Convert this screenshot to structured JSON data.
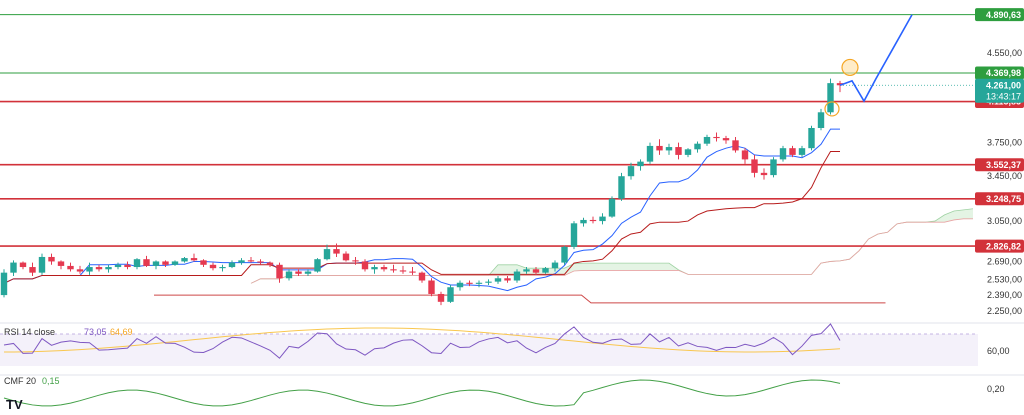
{
  "chart_data": {
    "type": "candlestick",
    "y_axis_ticks": [
      "4.550,00",
      "3.750,00",
      "3.450,00",
      "3.050,00",
      "2.690,00",
      "2.530,00",
      "2.390,00",
      "2.250,00"
    ],
    "ylim": [
      2150,
      4950
    ],
    "levels": [
      {
        "label": "4.890,63",
        "value": 4890.63,
        "color": "#2e9e3f"
      },
      {
        "label": "4.369,98",
        "value": 4369.98,
        "color": "#2e9e3f"
      },
      {
        "label": "4.115,85",
        "value": 4115.85,
        "color": "#d2323a"
      },
      {
        "label": "3.552,37",
        "value": 3552.37,
        "color": "#d2323a"
      },
      {
        "label": "3.248,75",
        "value": 3248.75,
        "color": "#d2323a"
      },
      {
        "label": "2.826,82",
        "value": 2826.82,
        "color": "#d2323a"
      }
    ],
    "current_price": {
      "label": "4.261,00",
      "countdown": "13:43:17",
      "value": 4261
    },
    "candles": [
      [
        2390,
        2620,
        2370,
        2590
      ],
      [
        2590,
        2700,
        2560,
        2680
      ],
      [
        2680,
        2690,
        2620,
        2640
      ],
      [
        2640,
        2680,
        2560,
        2590
      ],
      [
        2590,
        2760,
        2570,
        2730
      ],
      [
        2730,
        2760,
        2660,
        2690
      ],
      [
        2690,
        2700,
        2620,
        2650
      ],
      [
        2650,
        2680,
        2600,
        2620
      ],
      [
        2620,
        2650,
        2580,
        2600
      ],
      [
        2600,
        2680,
        2570,
        2640
      ],
      [
        2640,
        2660,
        2600,
        2620
      ],
      [
        2620,
        2660,
        2590,
        2640
      ],
      [
        2640,
        2680,
        2620,
        2660
      ],
      [
        2660,
        2690,
        2620,
        2640
      ],
      [
        2640,
        2720,
        2620,
        2710
      ],
      [
        2710,
        2740,
        2640,
        2650
      ],
      [
        2650,
        2700,
        2620,
        2690
      ],
      [
        2690,
        2700,
        2640,
        2660
      ],
      [
        2660,
        2700,
        2650,
        2690
      ],
      [
        2690,
        2730,
        2680,
        2720
      ],
      [
        2720,
        2760,
        2690,
        2700
      ],
      [
        2700,
        2710,
        2640,
        2660
      ],
      [
        2660,
        2680,
        2610,
        2630
      ],
      [
        2630,
        2660,
        2600,
        2640
      ],
      [
        2640,
        2700,
        2630,
        2680
      ],
      [
        2680,
        2720,
        2660,
        2700
      ],
      [
        2700,
        2730,
        2680,
        2690
      ],
      [
        2690,
        2710,
        2660,
        2680
      ],
      [
        2680,
        2690,
        2640,
        2660
      ],
      [
        2660,
        2680,
        2500,
        2540
      ],
      [
        2540,
        2620,
        2520,
        2600
      ],
      [
        2600,
        2620,
        2560,
        2580
      ],
      [
        2580,
        2620,
        2560,
        2600
      ],
      [
        2600,
        2720,
        2590,
        2710
      ],
      [
        2710,
        2840,
        2700,
        2800
      ],
      [
        2800,
        2850,
        2730,
        2760
      ],
      [
        2760,
        2780,
        2690,
        2700
      ],
      [
        2700,
        2730,
        2660,
        2690
      ],
      [
        2690,
        2710,
        2600,
        2620
      ],
      [
        2620,
        2660,
        2580,
        2640
      ],
      [
        2640,
        2660,
        2600,
        2620
      ],
      [
        2620,
        2660,
        2590,
        2610
      ],
      [
        2610,
        2650,
        2580,
        2600
      ],
      [
        2600,
        2640,
        2570,
        2590
      ],
      [
        2590,
        2600,
        2500,
        2520
      ],
      [
        2520,
        2540,
        2380,
        2400
      ],
      [
        2400,
        2420,
        2300,
        2330
      ],
      [
        2330,
        2480,
        2320,
        2460
      ],
      [
        2460,
        2520,
        2430,
        2500
      ],
      [
        2500,
        2520,
        2470,
        2490
      ],
      [
        2490,
        2520,
        2460,
        2500
      ],
      [
        2500,
        2530,
        2480,
        2510
      ],
      [
        2510,
        2560,
        2490,
        2540
      ],
      [
        2540,
        2560,
        2500,
        2520
      ],
      [
        2520,
        2620,
        2500,
        2600
      ],
      [
        2600,
        2640,
        2580,
        2620
      ],
      [
        2620,
        2640,
        2570,
        2590
      ],
      [
        2590,
        2640,
        2580,
        2630
      ],
      [
        2630,
        2700,
        2600,
        2680
      ],
      [
        2680,
        2830,
        2660,
        2820
      ],
      [
        2820,
        3050,
        2800,
        3030
      ],
      [
        3030,
        3080,
        3000,
        3060
      ],
      [
        3060,
        3090,
        3030,
        3050
      ],
      [
        3050,
        3120,
        3020,
        3090
      ],
      [
        3090,
        3270,
        3080,
        3250
      ],
      [
        3250,
        3480,
        3230,
        3450
      ],
      [
        3450,
        3570,
        3420,
        3540
      ],
      [
        3540,
        3600,
        3500,
        3580
      ],
      [
        3580,
        3750,
        3560,
        3720
      ],
      [
        3720,
        3780,
        3640,
        3680
      ],
      [
        3680,
        3740,
        3640,
        3710
      ],
      [
        3710,
        3750,
        3600,
        3640
      ],
      [
        3640,
        3700,
        3620,
        3690
      ],
      [
        3690,
        3760,
        3660,
        3740
      ],
      [
        3740,
        3820,
        3720,
        3800
      ],
      [
        3800,
        3840,
        3760,
        3790
      ],
      [
        3790,
        3810,
        3740,
        3770
      ],
      [
        3770,
        3800,
        3660,
        3680
      ],
      [
        3680,
        3700,
        3560,
        3600
      ],
      [
        3600,
        3640,
        3440,
        3480
      ],
      [
        3480,
        3520,
        3420,
        3460
      ],
      [
        3460,
        3620,
        3440,
        3600
      ],
      [
        3600,
        3720,
        3580,
        3700
      ],
      [
        3700,
        3720,
        3620,
        3640
      ],
      [
        3640,
        3720,
        3620,
        3700
      ],
      [
        3700,
        3900,
        3680,
        3880
      ],
      [
        3880,
        4050,
        3860,
        4020
      ],
      [
        4020,
        4320,
        4000,
        4280
      ],
      [
        4280,
        4300,
        4200,
        4261
      ]
    ],
    "forecast_path": [
      [
        4261,
        0
      ],
      [
        4300,
        1.5
      ],
      [
        4120,
        3
      ],
      [
        4320,
        4.5
      ],
      [
        4890,
        9
      ]
    ],
    "rsi": {
      "label": "RSI 14 close",
      "value1": "73,05",
      "value2": "64,69",
      "tick": "60,00"
    },
    "cmf": {
      "label": "CMF 20",
      "value": "0,15",
      "tick": "0,20"
    },
    "logo": "TV"
  }
}
